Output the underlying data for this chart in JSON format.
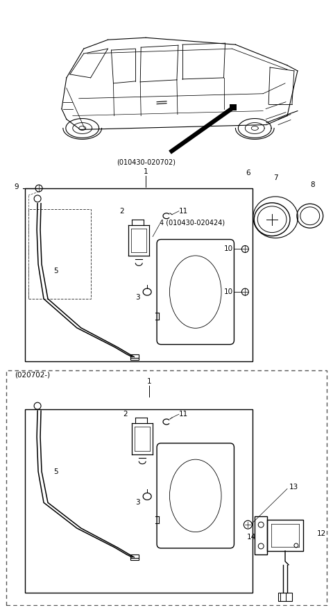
{
  "bg_color": "#ffffff",
  "fig_width": 4.8,
  "fig_height": 8.75,
  "dpi": 100,
  "lc": "#000000",
  "labels": {
    "top_part_number": "(010430-020702)",
    "top_item": "1",
    "bottom_section_label": "(020702-)",
    "item4_label": "4 (010430-020424)"
  }
}
